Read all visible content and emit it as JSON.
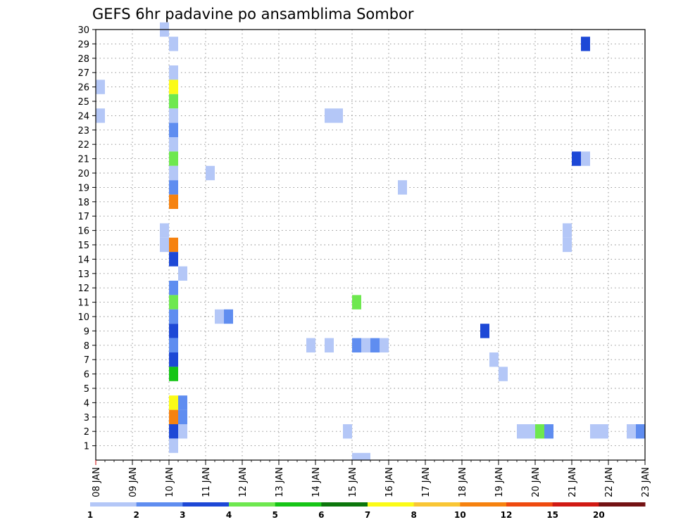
{
  "chart_data": {
    "type": "heatmap",
    "title": "GEFS 6hr padavine po ansamblima Sombor",
    "x_tick_labels": [
      "08 JAN",
      "09 JAN",
      "10 JAN",
      "11 JAN",
      "12 JAN",
      "13 JAN",
      "14 JAN",
      "15 JAN",
      "16 JAN",
      "17 JAN",
      "18 JAN",
      "19 JAN",
      "20 JAN",
      "21 JAN",
      "22 JAN",
      "23 JAN"
    ],
    "x_step_hours": 6,
    "y_tick_labels": [
      "1",
      "2",
      "3",
      "4",
      "5",
      "6",
      "7",
      "8",
      "9",
      "10",
      "11",
      "12",
      "13",
      "14",
      "15",
      "16",
      "17",
      "18",
      "19",
      "20",
      "21",
      "22",
      "23",
      "24",
      "25",
      "26",
      "27",
      "28",
      "29",
      "30"
    ],
    "ylim": [
      0,
      30
    ],
    "grid": true,
    "colorbar": {
      "tick_labels": [
        "1",
        "2",
        "3",
        "4",
        "5",
        "6",
        "7",
        "8",
        "10",
        "12",
        "15",
        "20"
      ],
      "colors": [
        "#b4c7f7",
        "#5f8df0",
        "#1d48d6",
        "#6ee84f",
        "#16c516",
        "#0c760c",
        "#fbfb17",
        "#f9c635",
        "#f6820f",
        "#ef4a0f",
        "#d11a14",
        "#741213"
      ]
    },
    "cells": [
      {
        "member": 30,
        "slot": 7,
        "bin": 1
      },
      {
        "member": 29,
        "slot": 8,
        "bin": 1
      },
      {
        "member": 29,
        "slot": 53,
        "bin": 3
      },
      {
        "member": 27,
        "slot": 8,
        "bin": 1
      },
      {
        "member": 26,
        "slot": 0,
        "bin": 1
      },
      {
        "member": 26,
        "slot": 8,
        "bin": 7
      },
      {
        "member": 25,
        "slot": 8,
        "bin": 4
      },
      {
        "member": 24,
        "slot": 0,
        "bin": 1
      },
      {
        "member": 24,
        "slot": 8,
        "bin": 1
      },
      {
        "member": 24,
        "slot": 25,
        "bin": 1
      },
      {
        "member": 24,
        "slot": 26,
        "bin": 1
      },
      {
        "member": 23,
        "slot": 8,
        "bin": 2
      },
      {
        "member": 22,
        "slot": 8,
        "bin": 1
      },
      {
        "member": 21,
        "slot": 8,
        "bin": 4
      },
      {
        "member": 21,
        "slot": 52,
        "bin": 3
      },
      {
        "member": 21,
        "slot": 53,
        "bin": 1
      },
      {
        "member": 20,
        "slot": 8,
        "bin": 1
      },
      {
        "member": 20,
        "slot": 12,
        "bin": 1
      },
      {
        "member": 19,
        "slot": 8,
        "bin": 2
      },
      {
        "member": 19,
        "slot": 33,
        "bin": 1
      },
      {
        "member": 18,
        "slot": 8,
        "bin": 9
      },
      {
        "member": 16,
        "slot": 7,
        "bin": 1
      },
      {
        "member": 16,
        "slot": 51,
        "bin": 1
      },
      {
        "member": 15,
        "slot": 7,
        "bin": 1
      },
      {
        "member": 15,
        "slot": 8,
        "bin": 9
      },
      {
        "member": 15,
        "slot": 51,
        "bin": 1
      },
      {
        "member": 14,
        "slot": 8,
        "bin": 3
      },
      {
        "member": 13,
        "slot": 9,
        "bin": 1
      },
      {
        "member": 12,
        "slot": 8,
        "bin": 2
      },
      {
        "member": 11,
        "slot": 8,
        "bin": 4
      },
      {
        "member": 11,
        "slot": 28,
        "bin": 4
      },
      {
        "member": 10,
        "slot": 8,
        "bin": 2
      },
      {
        "member": 10,
        "slot": 13,
        "bin": 1
      },
      {
        "member": 10,
        "slot": 14,
        "bin": 2
      },
      {
        "member": 9,
        "slot": 8,
        "bin": 3
      },
      {
        "member": 9,
        "slot": 42,
        "bin": 3
      },
      {
        "member": 8,
        "slot": 8,
        "bin": 2
      },
      {
        "member": 8,
        "slot": 23,
        "bin": 1
      },
      {
        "member": 8,
        "slot": 25,
        "bin": 1
      },
      {
        "member": 8,
        "slot": 28,
        "bin": 2
      },
      {
        "member": 8,
        "slot": 29,
        "bin": 1
      },
      {
        "member": 8,
        "slot": 30,
        "bin": 2
      },
      {
        "member": 8,
        "slot": 31,
        "bin": 1
      },
      {
        "member": 7,
        "slot": 8,
        "bin": 3
      },
      {
        "member": 7,
        "slot": 43,
        "bin": 1
      },
      {
        "member": 6,
        "slot": 8,
        "bin": 5
      },
      {
        "member": 6,
        "slot": 44,
        "bin": 1
      },
      {
        "member": 4,
        "slot": 8,
        "bin": 7
      },
      {
        "member": 4,
        "slot": 9,
        "bin": 2
      },
      {
        "member": 3,
        "slot": 8,
        "bin": 9
      },
      {
        "member": 3,
        "slot": 9,
        "bin": 2
      },
      {
        "member": 2,
        "slot": 8,
        "bin": 3
      },
      {
        "member": 2,
        "slot": 9,
        "bin": 1
      },
      {
        "member": 2,
        "slot": 27,
        "bin": 1
      },
      {
        "member": 2,
        "slot": 46,
        "bin": 1
      },
      {
        "member": 2,
        "slot": 47,
        "bin": 1
      },
      {
        "member": 2,
        "slot": 48,
        "bin": 4
      },
      {
        "member": 2,
        "slot": 49,
        "bin": 2
      },
      {
        "member": 2,
        "slot": 54,
        "bin": 1
      },
      {
        "member": 2,
        "slot": 55,
        "bin": 1
      },
      {
        "member": 2,
        "slot": 58,
        "bin": 1
      },
      {
        "member": 2,
        "slot": 59,
        "bin": 2
      },
      {
        "member": 1,
        "slot": 8,
        "bin": 1
      },
      {
        "member": 0,
        "slot": 28,
        "bin": 1
      },
      {
        "member": 0,
        "slot": 29,
        "bin": 1
      }
    ]
  }
}
